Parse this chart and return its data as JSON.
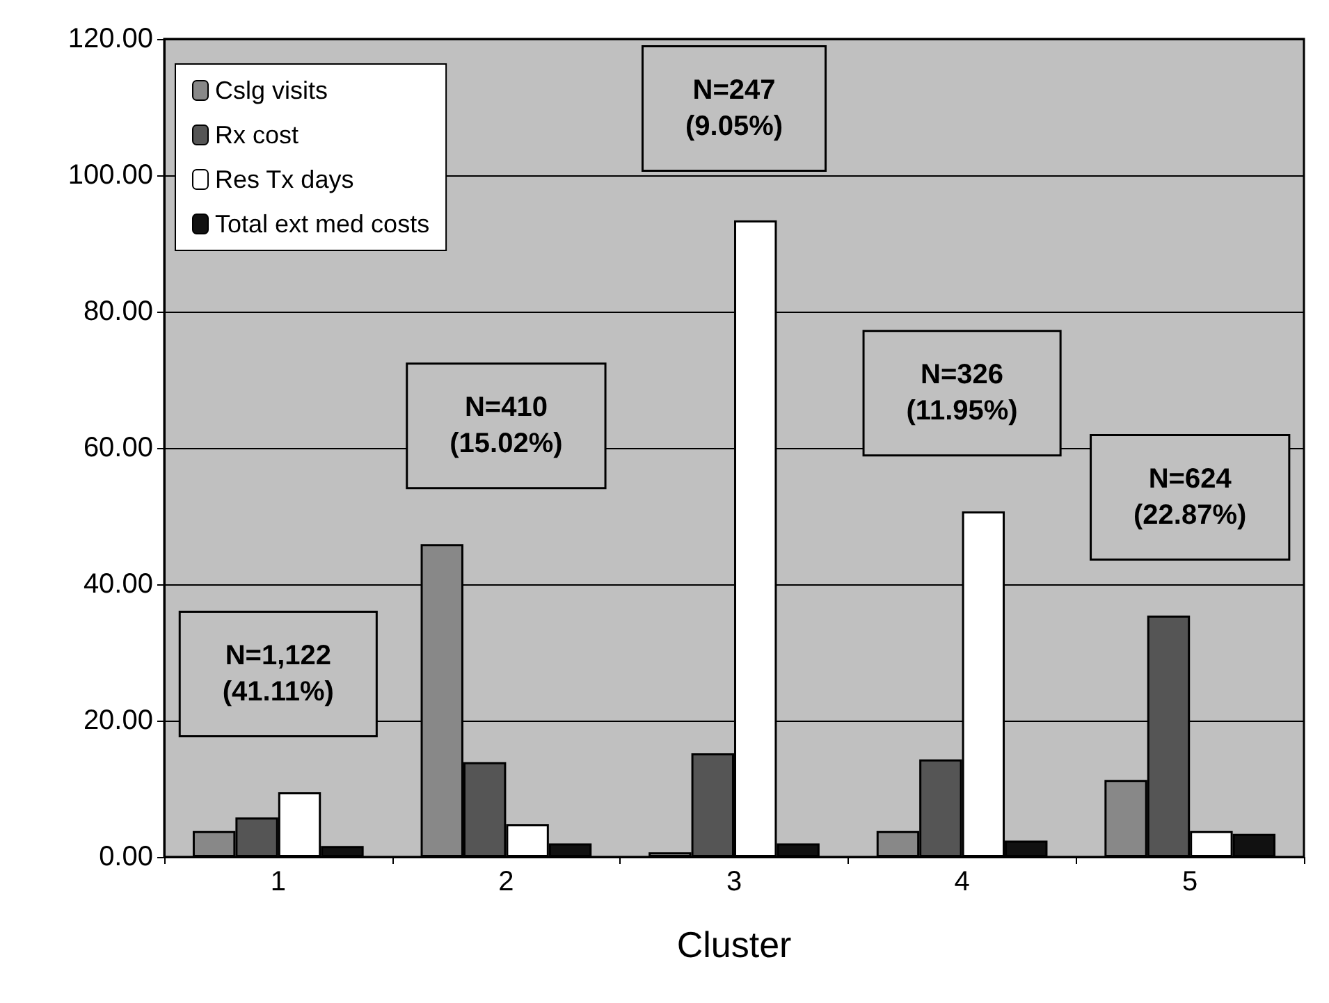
{
  "chart_data": {
    "type": "bar",
    "xlabel": "Cluster",
    "categories": [
      "1",
      "2",
      "3",
      "4",
      "5"
    ],
    "series": [
      {
        "name": "Cslg visits",
        "color": "#888888",
        "values": [
          3.8,
          45.9,
          0.7,
          3.8,
          11.3
        ]
      },
      {
        "name": "Rx cost",
        "color": "#555555",
        "values": [
          5.8,
          13.9,
          15.2,
          14.3,
          35.4
        ]
      },
      {
        "name": "Res Tx days",
        "color": "#ffffff",
        "values": [
          9.5,
          4.8,
          93.4,
          50.7,
          3.8
        ]
      },
      {
        "name": "Total ext med costs",
        "color": "#111111",
        "values": [
          1.6,
          2.0,
          2.0,
          2.4,
          3.4
        ]
      }
    ],
    "ylim": [
      0,
      120
    ],
    "yticks": [
      {
        "value": 0,
        "label": "0.00"
      },
      {
        "value": 20,
        "label": "20.00"
      },
      {
        "value": 40,
        "label": "40.00"
      },
      {
        "value": 60,
        "label": "60.00"
      },
      {
        "value": 80,
        "label": "80.00"
      },
      {
        "value": 100,
        "label": "100.00"
      },
      {
        "value": 120,
        "label": "120.00"
      }
    ],
    "grid": "y",
    "legend": "top left",
    "annotations": [
      "N=1,122\n(41.11%)",
      "N=410\n(15.02%)",
      "N=247\n(9.05%)",
      "N=326\n(11.95%)",
      "N=624\n(22.87%)"
    ]
  }
}
